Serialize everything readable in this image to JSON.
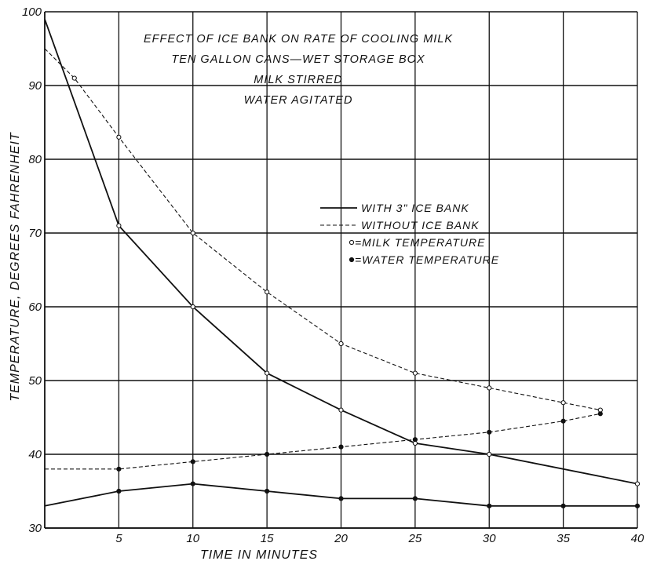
{
  "chart_data": {
    "type": "line",
    "title_lines": [
      "EFFECT OF ICE BANK ON RATE OF COOLING MILK",
      "TEN GALLON CANS—WET STORAGE BOX",
      "MILK STIRRED",
      "WATER AGITATED"
    ],
    "xlabel": "TIME IN MINUTES",
    "ylabel": "TEMPERATURE, DEGREES FAHRENHEIT",
    "xlim": [
      0,
      40
    ],
    "ylim": [
      30,
      100
    ],
    "x_ticks": [
      5,
      10,
      15,
      20,
      25,
      30,
      35,
      40
    ],
    "y_ticks": [
      30,
      40,
      50,
      60,
      70,
      80,
      90,
      100
    ],
    "grid": true,
    "legend": {
      "placement": "center-right",
      "entries": [
        "WITH 3\" ICE BANK",
        "WITHOUT ICE BANK",
        "=MILK TEMPERATURE",
        "=WATER TEMPERATURE"
      ]
    },
    "series": [
      {
        "style": "solid",
        "marker": "open",
        "x": [
          0,
          5,
          10,
          15,
          20,
          25,
          30,
          40
        ],
        "y": [
          99,
          71,
          60,
          51,
          46,
          41.5,
          40,
          36
        ]
      },
      {
        "style": "dashed",
        "marker": "open",
        "x": [
          0,
          2,
          5,
          10,
          15,
          20,
          25,
          30,
          35,
          37.5
        ],
        "y": [
          95,
          91,
          83,
          70,
          62,
          55,
          51,
          49,
          47,
          46
        ]
      },
      {
        "style": "solid",
        "marker": "filled",
        "x": [
          0,
          5,
          10,
          15,
          20,
          25,
          30,
          35,
          40
        ],
        "y": [
          33,
          35,
          36,
          35,
          34,
          34,
          33,
          33,
          33
        ]
      },
      {
        "style": "dashed",
        "marker": "filled",
        "x": [
          0,
          5,
          10,
          15,
          20,
          25,
          30,
          35,
          37.5
        ],
        "y": [
          38,
          38,
          39,
          40,
          41,
          42,
          43,
          44.5,
          45.5
        ]
      }
    ]
  }
}
